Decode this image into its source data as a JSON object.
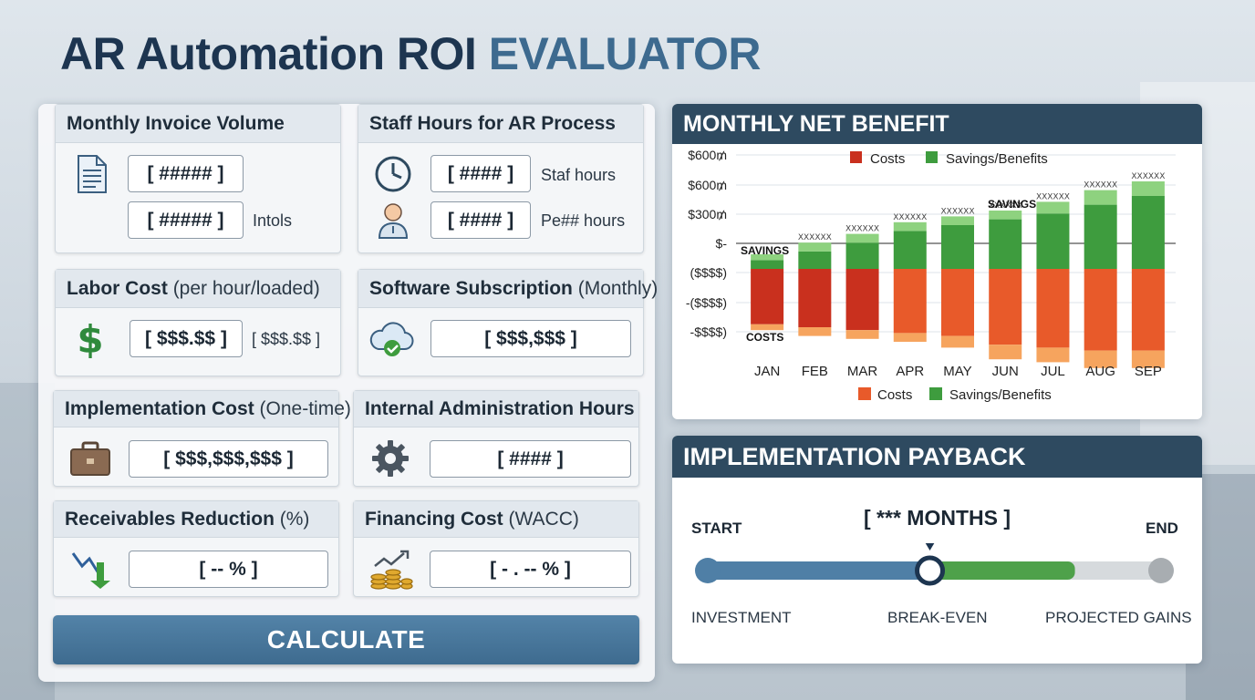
{
  "title": {
    "main": "AR Automation ROI",
    "accent": "EVALUATOR"
  },
  "cards": {
    "invoice": {
      "title": "Monthly Invoice Volume",
      "field1": "[ ##### ]",
      "field2": "[ ##### ]",
      "label2": "Intols"
    },
    "staff": {
      "title": "Staff Hours for AR Process",
      "field1": "[ #### ]",
      "label1": "Staf hours",
      "field2": "[ #### ]",
      "label2": "Pe## hours"
    },
    "labor": {
      "title": "Labor Cost",
      "title_note": "(per hour/loaded)",
      "field": "[ $$$.$$ ]",
      "label": "[ $$$.$$ ]"
    },
    "software": {
      "title": "Software Subscription",
      "title_note": "(Monthly)",
      "field": "[ $$$,$$$ ]"
    },
    "implementation": {
      "title": "Implementation Cost",
      "title_note": "(One-time)",
      "field": "[ $$$,$$$,$$$ ]"
    },
    "admin": {
      "title": "Internal Administration Hours",
      "field": "[ #### ]"
    },
    "receivables": {
      "title": "Receivables Reduction",
      "title_note": "(%)",
      "field": "[ -- % ]"
    },
    "financing": {
      "title": "Financing Cost",
      "title_note": "(WACC)",
      "field": "[ - . -- % ]"
    }
  },
  "icons": {
    "invoice": "document-icon",
    "staff_time": "clock-icon",
    "staff_person": "person-icon",
    "labor": "dollar-icon",
    "software": "cloud-check-icon",
    "implementation": "briefcase-icon",
    "admin": "gear-icon",
    "receivables": "down-arrow-icon",
    "financing": "growth-coins-icon"
  },
  "calculate_label": "CALCULATE",
  "chart_panel": {
    "title": "MONTHLY NET BENEFIT",
    "legend_top": [
      "Costs",
      "Savings/Benefits"
    ],
    "legend_bottom": [
      "Costs",
      "Savings/Benefits"
    ],
    "annotations": {
      "savings_left": "SAVINGS",
      "savings_mid": "SAVINGS",
      "costs": "COSTS"
    }
  },
  "chart_data": {
    "type": "bar",
    "categories": [
      "JAN",
      "FEB",
      "MAR",
      "APR",
      "MAY",
      "JUN",
      "JUL",
      "AUG",
      "SEP"
    ],
    "y_tick_labels": [
      "$600₥",
      "$600₥",
      "$300₥",
      "$-",
      "($$$$)",
      "-($$$$)",
      "-$$$$)"
    ],
    "value_label": "XXXXXX",
    "series": [
      {
        "name": "Costs",
        "values": [
          -1.9,
          -2.0,
          -2.1,
          -2.2,
          -2.3,
          -2.6,
          -2.7,
          -2.8,
          -2.8
        ],
        "shade_values": [
          -0.2,
          -0.3,
          -0.3,
          -0.3,
          -0.4,
          -0.5,
          -0.5,
          -0.6,
          -0.6
        ]
      },
      {
        "name": "Savings/Benefits",
        "values": [
          0.3,
          0.6,
          0.9,
          1.3,
          1.5,
          1.7,
          1.9,
          2.2,
          2.5
        ],
        "shade_values": [
          0.2,
          0.3,
          0.3,
          0.3,
          0.3,
          0.3,
          0.4,
          0.5,
          0.5
        ]
      }
    ],
    "ylim": [
      -3.6,
      3.6
    ],
    "colors": {
      "costs": "#c9301e",
      "costs_light": "#e85a2a",
      "costs_shade": "#f6a45e",
      "savings": "#3e9c3e",
      "savings_shade": "#8ed27f"
    },
    "grid": true,
    "legend_position": "top and bottom"
  },
  "payback": {
    "title": "IMPLEMENTATION PAYBACK",
    "months": "[ *** MONTHS ]",
    "start": "START",
    "end": "END",
    "labels": [
      "INVESTMENT",
      "BREAK-EVEN",
      "PROJECTED GAINS"
    ],
    "break_even_fraction": 0.49,
    "gain_fraction": 0.81
  }
}
